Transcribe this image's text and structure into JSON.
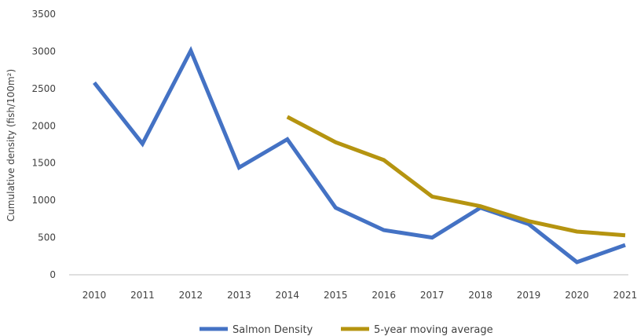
{
  "chart_data": {
    "type": "line",
    "title": "",
    "xlabel": "",
    "ylabel": "Cumulative density (fish/100m²)",
    "categories": [
      "2010",
      "2011",
      "2012",
      "2013",
      "2014",
      "2015",
      "2016",
      "2017",
      "2018",
      "2019",
      "2020",
      "2021"
    ],
    "yticks": [
      "0",
      "500",
      "1000",
      "1500",
      "2000",
      "2500",
      "3000",
      "3500"
    ],
    "ylim": [
      0,
      3500
    ],
    "grid": false,
    "legend_position": "bottom",
    "series": [
      {
        "name": "Salmon Density",
        "color": "#4472C4",
        "values": [
          2580,
          1760,
          3010,
          1440,
          1820,
          900,
          600,
          500,
          900,
          680,
          170,
          400
        ]
      },
      {
        "name": "5-year moving average",
        "color": "#B59410",
        "values": [
          null,
          null,
          null,
          null,
          2120,
          1780,
          1540,
          1050,
          920,
          720,
          580,
          530
        ]
      }
    ]
  }
}
